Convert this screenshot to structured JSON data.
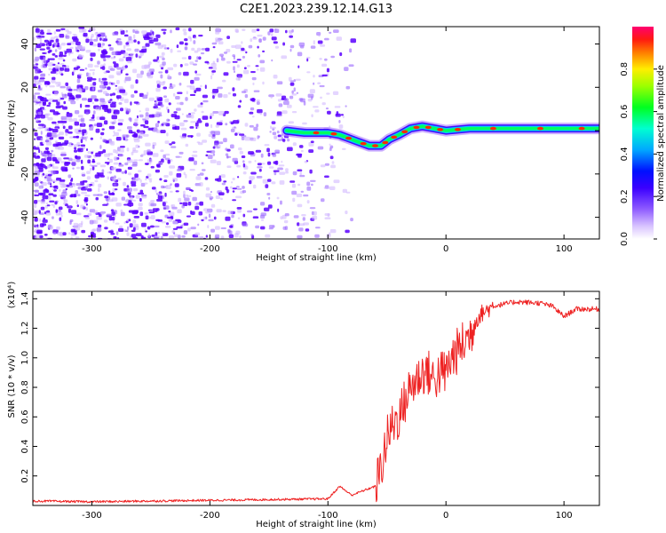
{
  "chart_data": [
    {
      "type": "heatmap",
      "title": "C2E1.2023.239.12.14.G13",
      "xlabel": "Height of straight line (km)",
      "ylabel": "Frequency (Hz)",
      "xlim": [
        -350,
        130
      ],
      "ylim": [
        -50,
        48
      ],
      "x_ticks": [
        -300,
        -200,
        -100,
        0,
        100
      ],
      "y_ticks": [
        -40,
        -20,
        0,
        20,
        40
      ],
      "colorbar": {
        "label": "Normalized spectral amplitude",
        "range": [
          0.0,
          1.0
        ],
        "ticks": [
          0.0,
          0.2,
          0.4,
          0.6,
          0.8
        ],
        "colors": [
          "#ffffff",
          "#b58cff",
          "#6a00ff",
          "#0000ff",
          "#00e5ff",
          "#00ff00",
          "#ffff00",
          "#ff2a00",
          "#ff007f"
        ]
      },
      "signal_track": {
        "x": [
          -135,
          -120,
          -100,
          -90,
          -75,
          -65,
          -55,
          -48,
          -40,
          -30,
          -20,
          -10,
          0,
          20,
          60,
          100,
          130
        ],
        "frequency": [
          0,
          -1,
          -1,
          -2,
          -5,
          -7,
          -7,
          -4,
          -2,
          1,
          2,
          1,
          0,
          1,
          1,
          1,
          1
        ]
      },
      "grid": false
    },
    {
      "type": "line",
      "title": "",
      "xlabel": "Height of straight line (km)",
      "ylabel": "SNR (10 * v/v)",
      "y_multiplier": "(x10⁴)",
      "xlim": [
        -350,
        130
      ],
      "ylim": [
        0,
        14500
      ],
      "x_ticks": [
        -300,
        -200,
        -100,
        0,
        100
      ],
      "y_ticks": [
        2000,
        4000,
        6000,
        8000,
        10000,
        12000,
        14000
      ],
      "y_tick_labels": [
        "0.2",
        "0.4",
        "0.6",
        "0.8",
        "1.0",
        "1.2",
        "1.4"
      ],
      "series": [
        {
          "color": "#ee2222",
          "x": [
            -350,
            -300,
            -250,
            -200,
            -150,
            -100,
            -90,
            -80,
            -70,
            -60,
            -55,
            -50,
            -45,
            -40,
            -35,
            -30,
            -25,
            -20,
            -15,
            -10,
            -5,
            0,
            5,
            10,
            15,
            20,
            25,
            30,
            40,
            60,
            80,
            90,
            100,
            110,
            130
          ],
          "values": [
            300,
            250,
            300,
            350,
            400,
            450,
            1300,
            700,
            1000,
            1300,
            2500,
            4500,
            5500,
            6000,
            7000,
            8000,
            8500,
            9000,
            9000,
            8500,
            9000,
            9000,
            10000,
            10500,
            11000,
            11500,
            12500,
            13000,
            13500,
            13800,
            13700,
            13500,
            12800,
            13300,
            13300
          ]
        }
      ],
      "grid": false
    }
  ]
}
